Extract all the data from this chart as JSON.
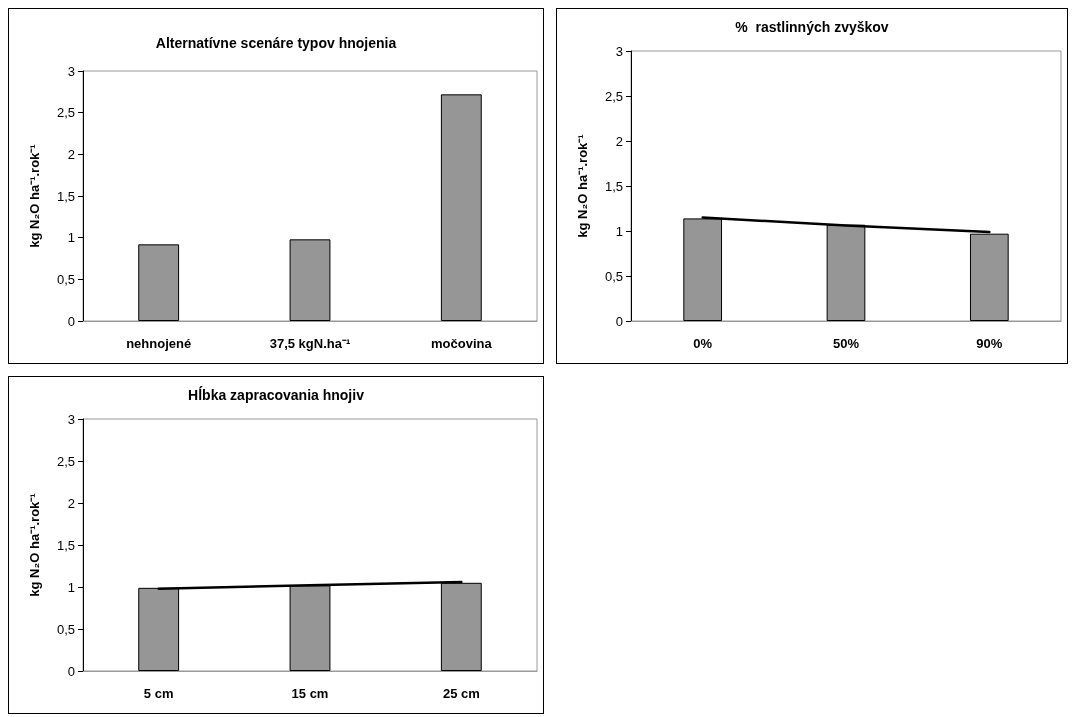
{
  "chart_data": [
    {
      "type": "bar",
      "title": "Alternatívne scenáre typov hnojenia",
      "ylabel": "kg N₂O ha⁻¹.rok⁻¹",
      "categories": [
        "nehnojené",
        "37,5 kgN.ha⁻¹",
        "močovina"
      ],
      "color": "#969696",
      "values": [
        0.92,
        0.98,
        2.72
      ],
      "ylim": [
        0,
        3
      ],
      "yticks": [
        0,
        {
          "value": 0.5,
          "label": "0,5"
        },
        1,
        {
          "value": 1.5,
          "label": "1,5"
        },
        2,
        {
          "value": 2.5,
          "label": "2,5"
        },
        3
      ],
      "grid": false
    },
    {
      "type": "bar",
      "title": "%  rastlinných zvyškov",
      "ylabel": "kg N₂O ha⁻¹.rok⁻¹",
      "categories": [
        "0%",
        "50%",
        "90%"
      ],
      "series": [
        {
          "color": "#969696",
          "values": [
            1.14,
            1.07,
            0.97
          ]
        },
        {
          "type": "line",
          "color": "#000000",
          "values": [
            1.15,
            1.06,
            0.99
          ],
          "marker": "none",
          "line_style": "solid"
        }
      ],
      "ylim": [
        0,
        3
      ],
      "yticks": [
        0,
        {
          "value": 0.5,
          "label": "0,5"
        },
        1,
        {
          "value": 1.5,
          "label": "1,5"
        },
        2,
        {
          "value": 2.5,
          "label": "2,5"
        },
        3
      ],
      "grid": false
    },
    {
      "type": "bar",
      "title": "Hĺbka zapracovania hnojiv",
      "ylabel": "kg N₂O ha⁻¹.rok⁻¹",
      "categories": [
        "5 cm",
        "15 cm",
        "25 cm"
      ],
      "series": [
        {
          "color": "#969696",
          "values": [
            0.99,
            1.02,
            1.05
          ]
        },
        {
          "type": "line",
          "color": "#000000",
          "values": [
            0.98,
            1.02,
            1.06
          ],
          "marker": "none",
          "line_style": "solid"
        }
      ],
      "ylim": [
        0,
        3
      ],
      "yticks": [
        0,
        {
          "value": 0.5,
          "label": "0,5"
        },
        1,
        {
          "value": 1.5,
          "label": "1,5"
        },
        2,
        {
          "value": 2.5,
          "label": "2,5"
        },
        3
      ],
      "grid": false
    }
  ]
}
